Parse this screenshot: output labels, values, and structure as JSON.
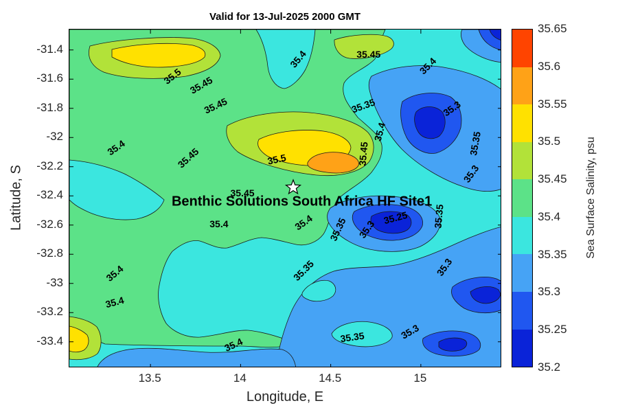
{
  "chart_data": {
    "type": "heatmap",
    "subtype": "filled_contour_map",
    "title": "Valid for 13-Jul-2025 2000 GMT",
    "xlabel": "Longitude, E",
    "ylabel": "Latitude, S",
    "xlim": [
      13.05,
      15.45
    ],
    "ylim": [
      -33.58,
      -31.26
    ],
    "grid": false,
    "x_ticks": [
      {
        "label": "13.5",
        "value": 13.5
      },
      {
        "label": "14",
        "value": 14
      },
      {
        "label": "14.5",
        "value": 14.5
      },
      {
        "label": "15",
        "value": 15
      }
    ],
    "y_ticks": [
      {
        "label": "-31.4",
        "value": -31.4
      },
      {
        "label": "-31.6",
        "value": -31.6
      },
      {
        "label": "-31.8",
        "value": -31.8
      },
      {
        "label": "-32",
        "value": -32
      },
      {
        "label": "-32.2",
        "value": -32.2
      },
      {
        "label": "-32.4",
        "value": -32.4
      },
      {
        "label": "-32.6",
        "value": -32.6
      },
      {
        "label": "-32.8",
        "value": -32.8
      },
      {
        "label": "-33",
        "value": -33
      },
      {
        "label": "-33.2",
        "value": -33.2
      },
      {
        "label": "-33.4",
        "value": -33.4
      }
    ],
    "colorbar": {
      "label": "Sea Surface Salinity, psu",
      "position": "right",
      "range": [
        35.2,
        35.65
      ],
      "ticks": [
        {
          "label": "35.65",
          "value": 35.65
        },
        {
          "label": "35.6",
          "value": 35.6
        },
        {
          "label": "35.55",
          "value": 35.55
        },
        {
          "label": "35.5",
          "value": 35.5
        },
        {
          "label": "35.45",
          "value": 35.45
        },
        {
          "label": "35.4",
          "value": 35.4
        },
        {
          "label": "35.35",
          "value": 35.35
        },
        {
          "label": "35.3",
          "value": 35.3
        },
        {
          "label": "35.25",
          "value": 35.25
        },
        {
          "label": "35.2",
          "value": 35.2
        }
      ]
    },
    "levels": [
      35.2,
      35.25,
      35.3,
      35.35,
      35.4,
      35.45,
      35.5,
      35.55,
      35.6
    ],
    "level_colors": {
      "35.2": "#0A23D8",
      "35.25": "#2057F0",
      "35.3": "#46A3F5",
      "35.35": "#3BE6DF",
      "35.4": "#5CE288",
      "35.45": "#B2E239",
      "35.5": "#FFE100",
      "35.55": "#FFA217",
      "35.6": "#FF4400"
    },
    "contour_labels": [
      {
        "t": "35.5",
        "lon": 13.62,
        "lat": -31.58,
        "r": -38
      },
      {
        "t": "35.45",
        "lon": 13.78,
        "lat": -31.64,
        "r": -30
      },
      {
        "t": "35.45",
        "lon": 13.86,
        "lat": -31.78,
        "r": -25
      },
      {
        "t": "35.4",
        "lon": 14.32,
        "lat": -31.46,
        "r": -50
      },
      {
        "t": "35.45",
        "lon": 14.71,
        "lat": -31.43,
        "r": 0
      },
      {
        "t": "35.4",
        "lon": 15.04,
        "lat": -31.51,
        "r": -45
      },
      {
        "t": "35.35",
        "lon": 14.68,
        "lat": -31.78,
        "r": -20
      },
      {
        "t": "35.3",
        "lon": 15.17,
        "lat": -31.8,
        "r": -35
      },
      {
        "t": "35.4",
        "lon": 13.31,
        "lat": -32.07,
        "r": -35
      },
      {
        "t": "35.45",
        "lon": 13.71,
        "lat": -32.14,
        "r": -42
      },
      {
        "t": "35.4",
        "lon": 14.77,
        "lat": -31.96,
        "r": -75
      },
      {
        "t": "35.45",
        "lon": 14.68,
        "lat": -32.11,
        "r": -85
      },
      {
        "t": "35.35",
        "lon": 15.3,
        "lat": -32.04,
        "r": -80
      },
      {
        "t": "35.3",
        "lon": 15.28,
        "lat": -32.25,
        "r": -55
      },
      {
        "t": "35.5",
        "lon": 14.2,
        "lat": -32.15,
        "r": -12
      },
      {
        "t": "35.45",
        "lon": 14.01,
        "lat": -32.38,
        "r": 0
      },
      {
        "t": "35.4",
        "lon": 13.88,
        "lat": -32.59,
        "r": 0
      },
      {
        "t": "35.4",
        "lon": 14.35,
        "lat": -32.58,
        "r": -35
      },
      {
        "t": "35.35",
        "lon": 14.54,
        "lat": -32.63,
        "r": -65
      },
      {
        "t": "35.3",
        "lon": 14.7,
        "lat": -32.63,
        "r": -55
      },
      {
        "t": "35.25",
        "lon": 14.86,
        "lat": -32.55,
        "r": -15
      },
      {
        "t": "35.35",
        "lon": 15.1,
        "lat": -32.54,
        "r": -85
      },
      {
        "t": "35.3",
        "lon": 15.13,
        "lat": -32.89,
        "r": -55
      },
      {
        "t": "35.35",
        "lon": 14.35,
        "lat": -32.91,
        "r": -45
      },
      {
        "t": "35.4",
        "lon": 13.3,
        "lat": -32.93,
        "r": -40
      },
      {
        "t": "35.4",
        "lon": 13.3,
        "lat": -33.13,
        "r": -15
      },
      {
        "t": "35.35",
        "lon": 14.62,
        "lat": -33.37,
        "r": -8
      },
      {
        "t": "35.3",
        "lon": 14.94,
        "lat": -33.33,
        "r": -30
      },
      {
        "t": "35.4",
        "lon": 13.96,
        "lat": -33.42,
        "r": -25
      }
    ],
    "annotation": {
      "text": "Benthic Solutions South Africa HF Site1",
      "marker": "star",
      "marker_color": "#ffffff",
      "marker_lon": 14.29,
      "marker_lat": -32.34,
      "text_lon": 14.34,
      "text_lat": -32.44
    }
  }
}
